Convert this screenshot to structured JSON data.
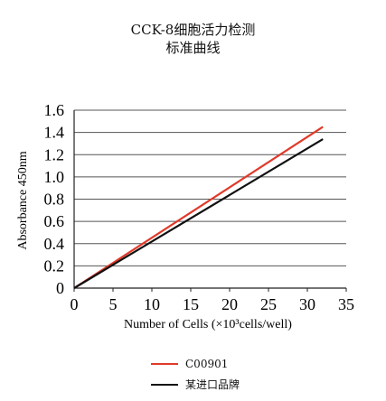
{
  "chart_data": {
    "type": "line",
    "title": "CCK-8细胞活力检测",
    "subtitle": "标准曲线",
    "xlabel": "Number of Cells (×10³cells/well)",
    "ylabel": "Absorbance 450nm",
    "xlim": [
      0,
      35
    ],
    "ylim": [
      0,
      1.6
    ],
    "x_ticks": [
      "0",
      "5",
      "10",
      "15",
      "20",
      "25",
      "30",
      "35"
    ],
    "y_ticks": [
      "0",
      "0.2",
      "0.4",
      "0.6",
      "0.8",
      "1.0",
      "1.2",
      "1.4",
      "1.6"
    ],
    "grid": "horizontal",
    "legend_position": "bottom",
    "series": [
      {
        "name": "C00901",
        "color": "#e03a2a",
        "x": [
          0,
          32
        ],
        "y": [
          0,
          1.45
        ]
      },
      {
        "name": "某进口品牌",
        "color": "#111111",
        "x": [
          0,
          32
        ],
        "y": [
          0,
          1.34
        ]
      }
    ]
  }
}
